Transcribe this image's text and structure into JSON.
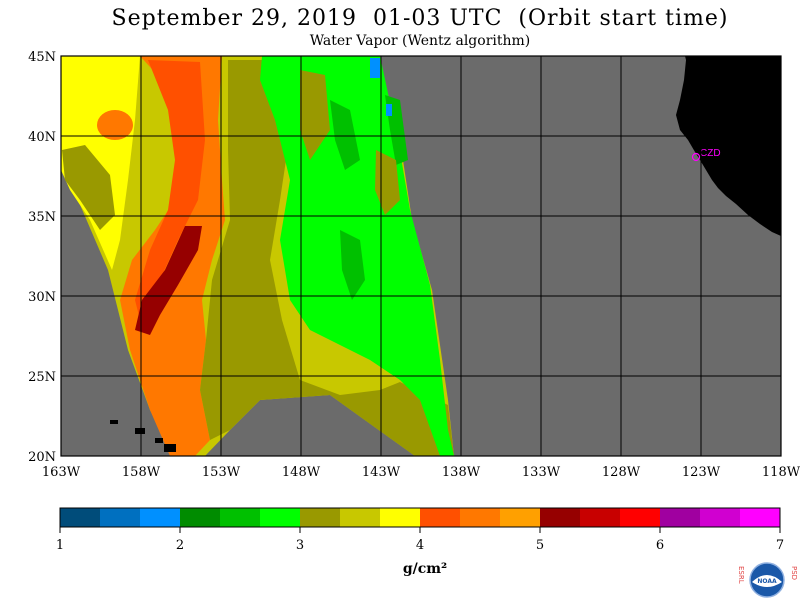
{
  "header": {
    "title": "September 29, 2019  01-03 UTC  (Orbit start time)",
    "subtitle": "Water Vapor (Wentz algorithm)"
  },
  "map": {
    "lat_labels": [
      "45N",
      "40N",
      "35N",
      "30N",
      "25N",
      "20N"
    ],
    "lon_labels": [
      "163W",
      "158W",
      "153W",
      "148W",
      "143W",
      "138W",
      "133W",
      "128W",
      "123W",
      "118W"
    ],
    "station_label": "CZD",
    "colors": {
      "no_data": "#6b6b6b",
      "land": "#000000",
      "station": "#ff00ff"
    }
  },
  "colorbar": {
    "colors": [
      "#004c7a",
      "#0070c0",
      "#0090ff",
      "#008c00",
      "#00c000",
      "#00ff00",
      "#999900",
      "#c8c800",
      "#ffff00",
      "#ff5000",
      "#ff7800",
      "#ffa000",
      "#960000",
      "#c80000",
      "#ff0000",
      "#a000a0",
      "#d000d0",
      "#ff00ff"
    ],
    "tick_labels": [
      "1",
      "2",
      "3",
      "4",
      "5",
      "6",
      "7"
    ],
    "units": "g/cm²"
  },
  "logo": {
    "left_text": "ESRL",
    "right_text": "PSD",
    "center_text": "NOAA"
  }
}
